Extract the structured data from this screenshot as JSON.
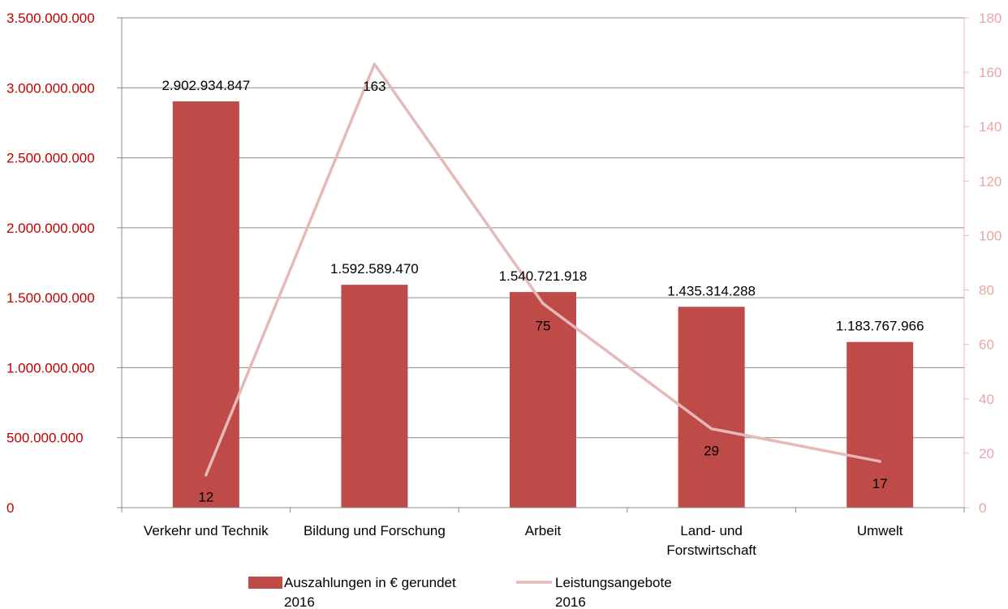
{
  "chart_data": {
    "type": "bar",
    "categories": [
      "Verkehr und Technik",
      "Bildung und Forschung",
      "Arbeit",
      "Land- und Forstwirtschaft",
      "Umwelt"
    ],
    "category_label_lines": [
      [
        "Verkehr und Technik"
      ],
      [
        "Bildung und Forschung"
      ],
      [
        "Arbeit"
      ],
      [
        "Land- und",
        "Forstwirtschaft"
      ],
      [
        "Umwelt"
      ]
    ],
    "series": [
      {
        "name": "Auszahlungen in € gerundet 2016",
        "name_lines": [
          "Auszahlungen in € gerundet",
          "2016"
        ],
        "type": "bar",
        "axis": "left",
        "color": "#be4b48",
        "values": [
          2902934847,
          1592589470,
          1540721918,
          1435314288,
          1183767966
        ],
        "labels": [
          "2.902.934.847",
          "1.592.589.470",
          "1.540.721.918",
          "1.435.314.288",
          "1.183.767.966"
        ]
      },
      {
        "name": "Leistungsangebote 2016",
        "name_lines": [
          "Leistungsangebote",
          "2016"
        ],
        "type": "line",
        "axis": "right",
        "color": "#e6b9b8",
        "values": [
          12,
          163,
          75,
          29,
          17
        ],
        "labels": [
          "12",
          "163",
          "75",
          "29",
          "17"
        ]
      }
    ],
    "y_left": {
      "ylim": [
        0,
        3500000000
      ],
      "ticks": [
        0,
        500000000,
        1000000000,
        1500000000,
        2000000000,
        2500000000,
        3000000000,
        3500000000
      ],
      "tick_labels": [
        "0",
        "500.000.000",
        "1.000.000.000",
        "1.500.000.000",
        "2.000.000.000",
        "2.500.000.000",
        "3.000.000.000",
        "3.500.000.000"
      ],
      "color": "#c00000"
    },
    "y_right": {
      "ylim": [
        0,
        180
      ],
      "ticks": [
        0,
        20,
        40,
        60,
        80,
        100,
        120,
        140,
        160,
        180
      ],
      "tick_labels": [
        "0",
        "20",
        "40",
        "60",
        "80",
        "100",
        "120",
        "140",
        "160",
        "180"
      ],
      "color": "#e6a6a3"
    },
    "grid": true,
    "legend_position": "bottom"
  }
}
